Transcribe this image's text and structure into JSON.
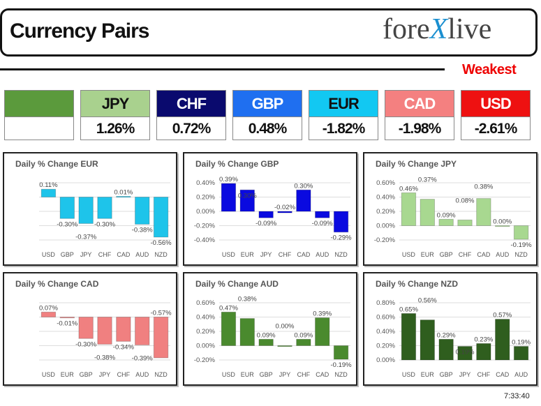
{
  "header": {
    "title": "Currency Pairs",
    "logo": "forexlive"
  },
  "weakest_label": "Weakest",
  "tiles": [
    {
      "currency": "",
      "value": "",
      "color": "#5b9a3c",
      "text_color": "#111"
    },
    {
      "currency": "JPY",
      "value": "1.26%",
      "color": "#a9d18e",
      "text_color": "#111"
    },
    {
      "currency": "CHF",
      "value": "0.72%",
      "color": "#0a0a6e",
      "text_color": "#fff"
    },
    {
      "currency": "GBP",
      "value": "0.48%",
      "color": "#1f6ff0",
      "text_color": "#fff"
    },
    {
      "currency": "EUR",
      "value": "-1.82%",
      "color": "#12c8f2",
      "text_color": "#111"
    },
    {
      "currency": "CAD",
      "value": "-1.98%",
      "color": "#f48080",
      "text_color": "#fff"
    },
    {
      "currency": "USD",
      "value": "-2.61%",
      "color": "#ee1111",
      "text_color": "#fff"
    }
  ],
  "chart_data": [
    {
      "type": "bar",
      "title": "Daily % Change EUR",
      "categories": [
        "USD",
        "GBP",
        "JPY",
        "CHF",
        "CAD",
        "AUD",
        "NZD"
      ],
      "values": [
        0.11,
        -0.3,
        -0.37,
        -0.3,
        0.01,
        -0.38,
        -0.56
      ],
      "ylim": [
        -0.6,
        0.2
      ],
      "ticks": [],
      "color": "#1ec4ea",
      "grid": true
    },
    {
      "type": "bar",
      "title": "Daily % Change GBP",
      "categories": [
        "USD",
        "EUR",
        "JPY",
        "CHF",
        "CAD",
        "AUD",
        "NZD"
      ],
      "values": [
        0.39,
        0.3,
        -0.09,
        -0.02,
        0.3,
        -0.09,
        -0.29
      ],
      "ylim": [
        -0.4,
        0.4
      ],
      "ticks": [
        "0.40%",
        "0.20%",
        "0.00%",
        "-0.20%",
        "-0.40%"
      ],
      "color": "#0a0ae0",
      "grid": true
    },
    {
      "type": "bar",
      "title": "Daily % Change JPY",
      "categories": [
        "USD",
        "EUR",
        "GBP",
        "CHF",
        "CAD",
        "AUD",
        "NZD"
      ],
      "values": [
        0.46,
        0.37,
        0.09,
        0.08,
        0.38,
        0.0,
        -0.19
      ],
      "ylim": [
        -0.2,
        0.6
      ],
      "ticks": [
        "0.60%",
        "0.40%",
        "0.20%",
        "0.00%",
        "-0.20%"
      ],
      "color": "#a8d890",
      "grid": true
    },
    {
      "type": "bar",
      "title": "Daily % Change CAD",
      "categories": [
        "USD",
        "EUR",
        "GBP",
        "JPY",
        "CHF",
        "AUD",
        "NZD"
      ],
      "values": [
        0.07,
        -0.01,
        -0.3,
        -0.38,
        -0.34,
        -0.39,
        -0.57
      ],
      "ylim": [
        -0.6,
        0.2
      ],
      "ticks": [],
      "color": "#f08080",
      "grid": true
    },
    {
      "type": "bar",
      "title": "Daily % Change AUD",
      "categories": [
        "USD",
        "EUR",
        "GBP",
        "JPY",
        "CHF",
        "CAD",
        "NZD"
      ],
      "values": [
        0.47,
        0.38,
        0.09,
        0.0,
        0.09,
        0.39,
        -0.19
      ],
      "ylim": [
        -0.2,
        0.6
      ],
      "ticks": [
        "0.60%",
        "0.40%",
        "0.20%",
        "0.00%",
        "-0.20%"
      ],
      "color": "#4a8a2e",
      "grid": true
    },
    {
      "type": "bar",
      "title": "Daily % Change NZD",
      "categories": [
        "USD",
        "EUR",
        "GBP",
        "JPY",
        "CHF",
        "CAD",
        "AUD"
      ],
      "values": [
        0.65,
        0.56,
        0.29,
        0.19,
        0.23,
        0.57,
        0.19
      ],
      "ylim": [
        0,
        0.8
      ],
      "ticks": [
        "0.80%",
        "0.60%",
        "0.40%",
        "0.20%",
        "0.00%"
      ],
      "color": "#2f5e1e",
      "grid": true
    }
  ],
  "timestamp": "7:33:40"
}
